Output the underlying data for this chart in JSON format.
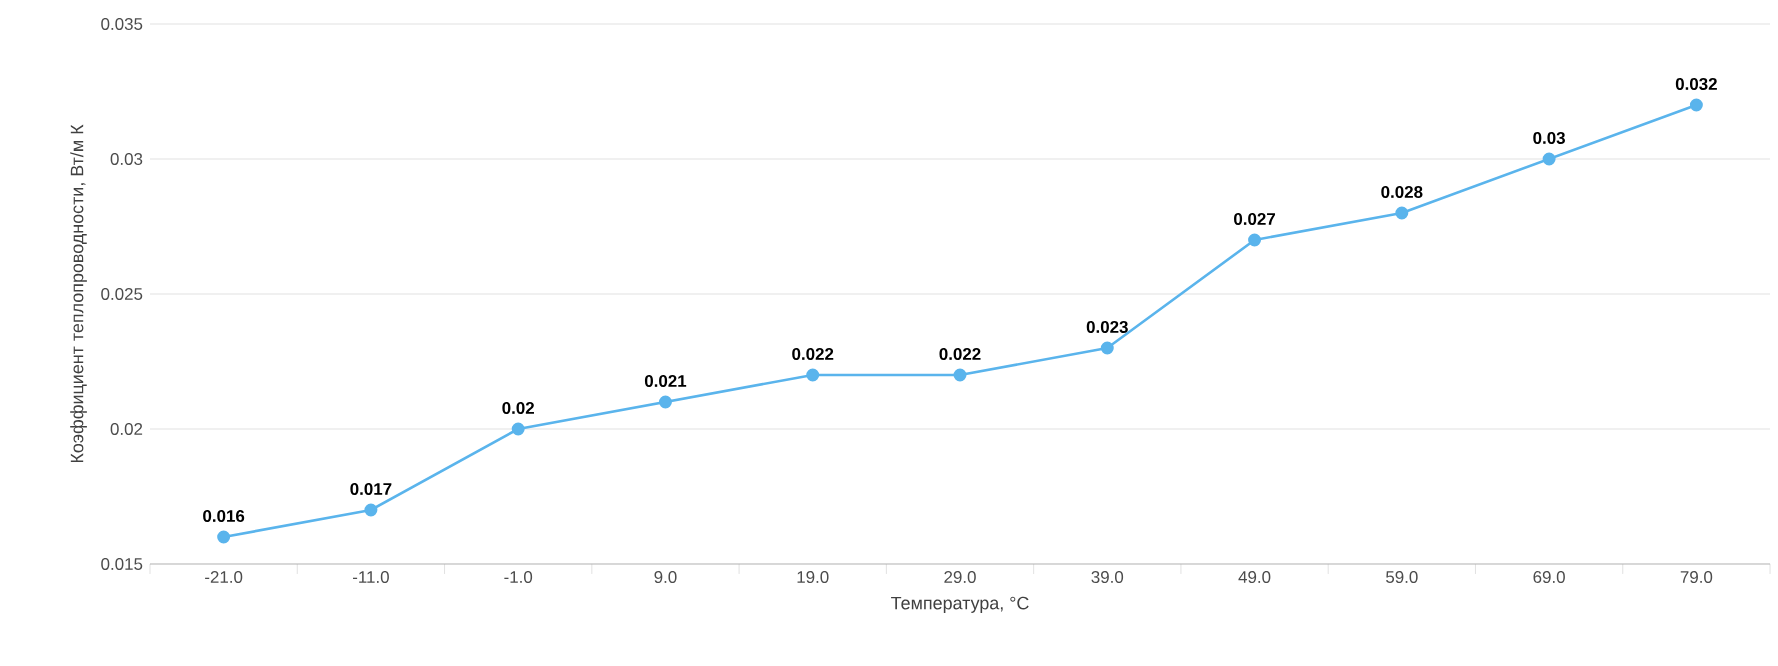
{
  "chart_data": {
    "type": "line",
    "xlabel": "Температура, °С",
    "ylabel": "Коэффициент теплопроводности, Вт/м К",
    "categories": [
      "-21.0",
      "-11.0",
      "-1.0",
      "9.0",
      "19.0",
      "29.0",
      "39.0",
      "49.0",
      "59.0",
      "69.0",
      "79.0"
    ],
    "values": [
      0.016,
      0.017,
      0.02,
      0.021,
      0.022,
      0.022,
      0.023,
      0.027,
      0.028,
      0.03,
      0.032
    ],
    "color": "#5ab4ec",
    "ylim": [
      0.015,
      0.035
    ],
    "yticks": [
      0.015,
      0.02,
      0.025,
      0.03,
      0.035
    ],
    "grid": "y",
    "marker": "circle",
    "line_style": "solid",
    "data_labels": true
  }
}
